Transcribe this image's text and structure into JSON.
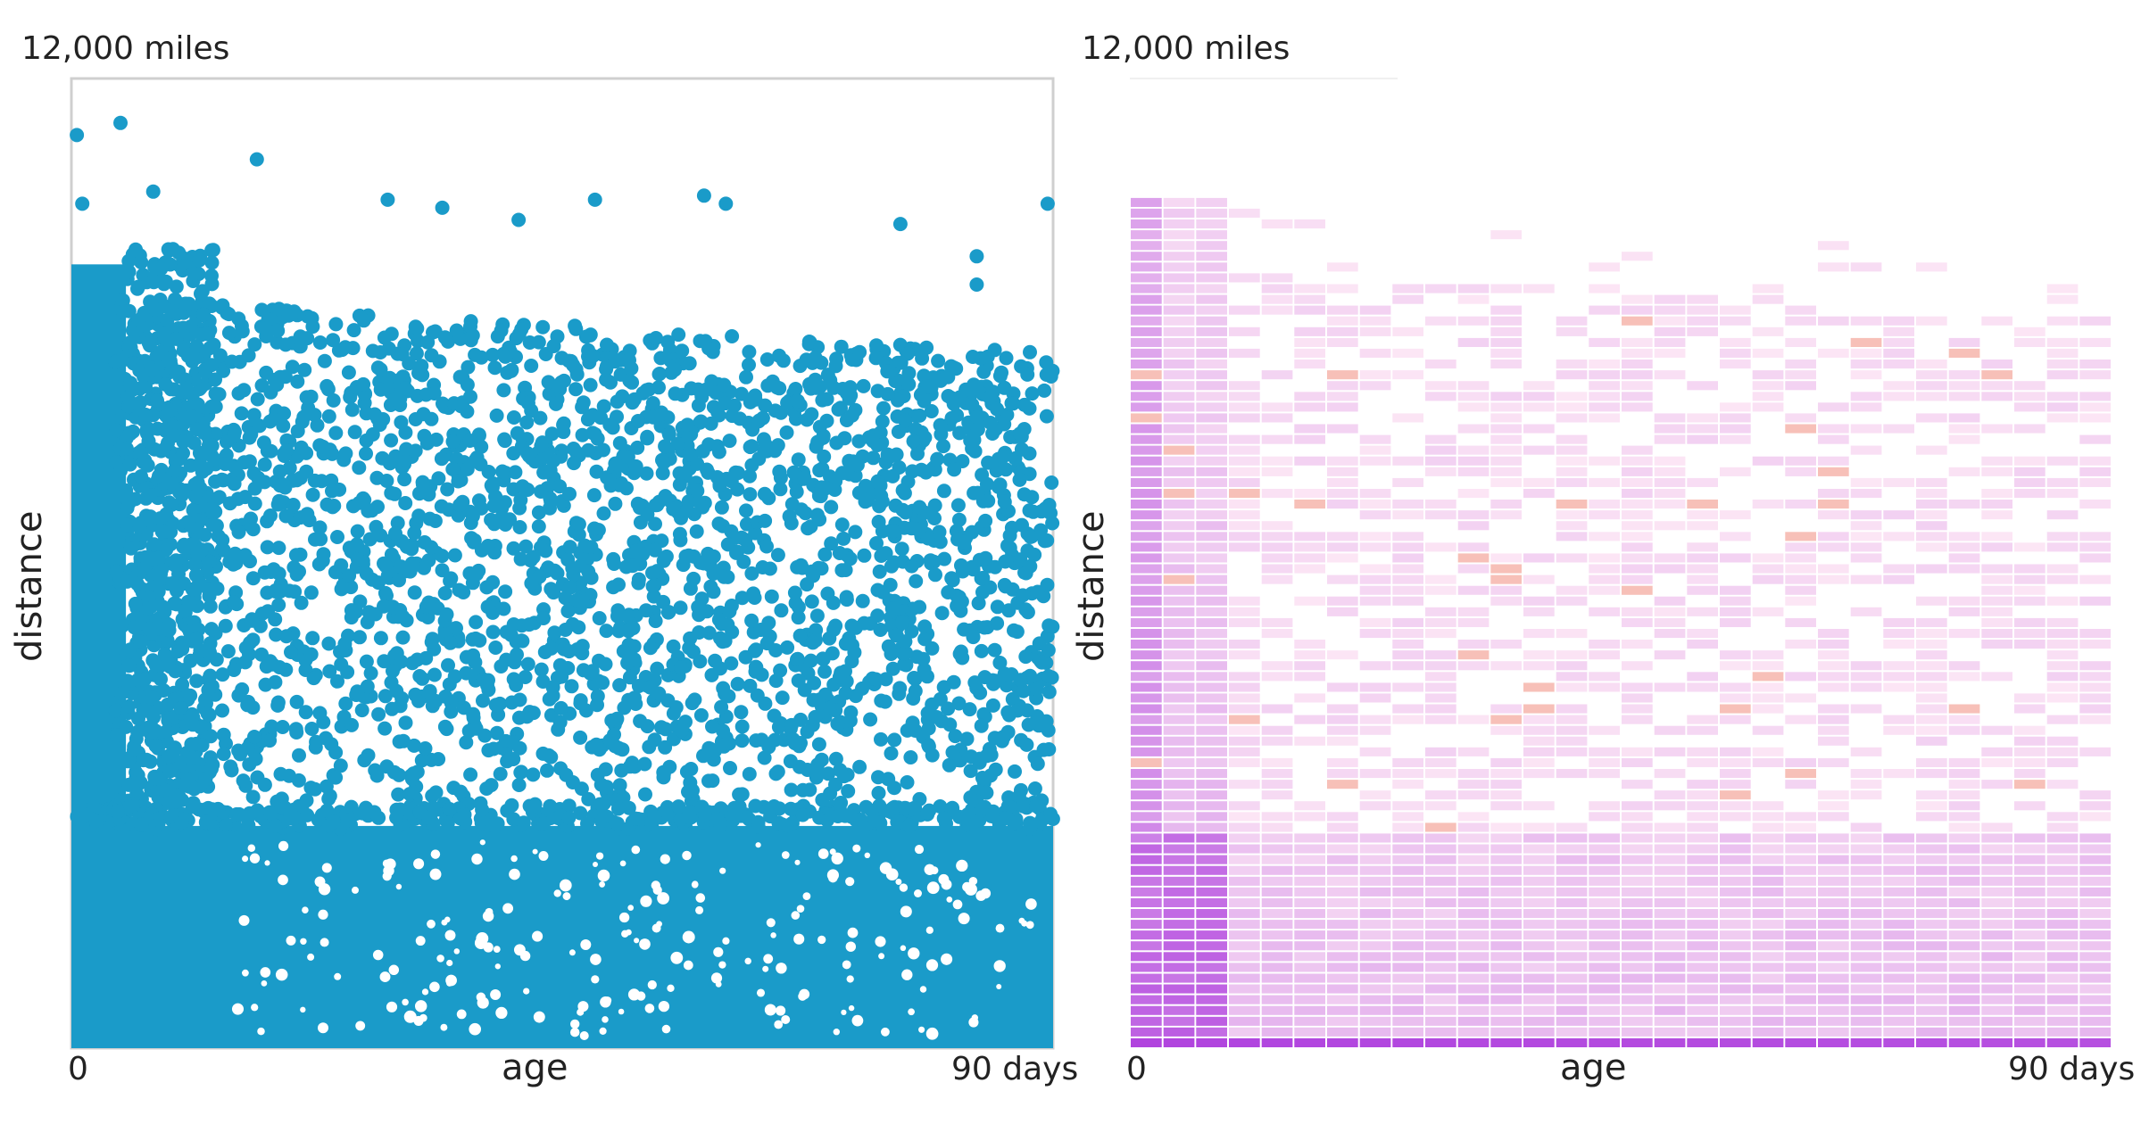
{
  "chart_data": [
    {
      "type": "scatter",
      "xlabel": "age",
      "ylabel": "distance",
      "ytick_top": "12,000 miles",
      "xtick_left": "0",
      "xtick_right": "90 days",
      "xlim": [
        0,
        90
      ],
      "ylim": [
        0,
        12000
      ],
      "marker_color": "#1a9bc9",
      "dense_regions": [
        {
          "x": [
            0,
            90
          ],
          "y": [
            0,
            2700
          ],
          "note": "solid band"
        },
        {
          "x": [
            0,
            6
          ],
          "y": [
            0,
            9700
          ],
          "note": "solid column"
        }
      ],
      "sample_points": [
        {
          "x": 0.5,
          "y": 11300
        },
        {
          "x": 4.5,
          "y": 11450
        },
        {
          "x": 17,
          "y": 11000
        },
        {
          "x": 7.5,
          "y": 10600
        },
        {
          "x": 1,
          "y": 10450
        },
        {
          "x": 29,
          "y": 10500
        },
        {
          "x": 48,
          "y": 10500
        },
        {
          "x": 58,
          "y": 10550
        },
        {
          "x": 60,
          "y": 10450
        },
        {
          "x": 89.5,
          "y": 10450
        },
        {
          "x": 76,
          "y": 10200
        },
        {
          "x": 83,
          "y": 9800
        },
        {
          "x": 83,
          "y": 9450
        },
        {
          "x": 34,
          "y": 10400
        },
        {
          "x": 41,
          "y": 10250
        }
      ],
      "scatter_gen": {
        "seed": 7,
        "sparse_count": 2600,
        "sparse_y_top": 9300,
        "sparse_y_top_right": 8600,
        "sparse_y_bottom": 2700,
        "band_y_top": 2750,
        "column_x_right": 5,
        "column_y_top": 9700
      }
    },
    {
      "type": "heatmap",
      "xlabel": "age",
      "ylabel": "distance",
      "ytick_top": "12,000 miles",
      "xtick_left": "0",
      "xtick_right": "90 days",
      "xlim": [
        0,
        90
      ],
      "ylim": [
        0,
        12000
      ],
      "bins": {
        "x": 30,
        "y": 90
      },
      "color_low": "#fde8f5",
      "color_high": "#9b16d8",
      "accent_color": "#f7c0b8",
      "heat_gen": {
        "seed": 11,
        "band_y_top": 2700,
        "column_x_right": 3,
        "column_y_top": 10500,
        "sparse_y_top_left": 9700,
        "sparse_y_top_right": 9000
      }
    }
  ]
}
